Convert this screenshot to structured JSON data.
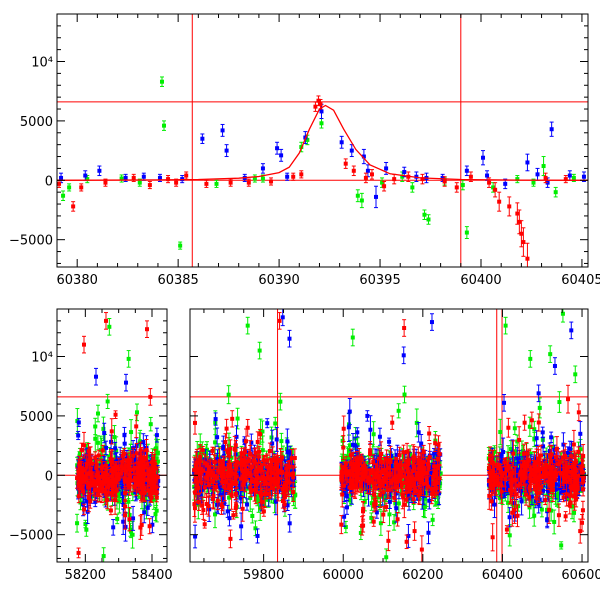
{
  "chart_data": [
    {
      "type": "scatter",
      "title": "",
      "xlabel": "",
      "ylabel": "",
      "xlim": [
        60379,
        60405.3
      ],
      "ylim": [
        -7300,
        14000
      ],
      "x_ticks": [
        60380,
        60385,
        60390,
        60395,
        60400,
        60405
      ],
      "x_tick_labels": [
        "60380",
        "60385",
        "60390",
        "60395",
        "60400",
        "60405"
      ],
      "y_ticks": [
        -5000,
        0,
        5000,
        10000
      ],
      "y_tick_labels": [
        "−5000",
        "0",
        "5000",
        "10⁴"
      ],
      "reference_lines": {
        "horizontal": [
          0,
          6600
        ],
        "vertical": [
          60385.7,
          60399
        ]
      },
      "model_curve": {
        "color": "#ff0000",
        "x": [
          60379,
          60384,
          60386,
          60388,
          60389,
          60390,
          60390.5,
          60391,
          60391.5,
          60392,
          60392.3,
          60392.7,
          60393.2,
          60393.8,
          60394.5,
          60395.5,
          60397,
          60399,
          60402,
          60405.3
        ],
        "y": [
          0,
          30,
          70,
          180,
          320,
          650,
          1100,
          2300,
          4300,
          6000,
          6300,
          5900,
          4300,
          2600,
          1300,
          550,
          200,
          70,
          20,
          0
        ]
      },
      "series": [
        {
          "color": "#00ee00",
          "x": [
            60379.3,
            60379.6,
            60380.5,
            60382.2,
            60383.1,
            60384.2,
            60384.3,
            60385.1,
            60386.9,
            60388.8,
            60389.2,
            60391.1,
            60391.4,
            60392.1,
            60393.9,
            60394.1,
            60395.1,
            60396.1,
            60396.6,
            60397.2,
            60397.4,
            60398.2,
            60399.1,
            60399.3,
            60400.6,
            60401.8,
            60402.6,
            60403.1,
            60403.7,
            60404.6
          ],
          "y": [
            -1300,
            -600,
            100,
            150,
            -200,
            8300,
            4600,
            -5500,
            -300,
            150,
            150,
            2800,
            3400,
            4800,
            -1300,
            -1700,
            -200,
            300,
            -600,
            -2900,
            -3300,
            -100,
            -400,
            -4400,
            -600,
            100,
            -200,
            1200,
            -1000,
            200
          ],
          "err": [
            400,
            300,
            300,
            300,
            300,
            400,
            400,
            300,
            300,
            300,
            300,
            400,
            400,
            400,
            500,
            600,
            400,
            400,
            400,
            400,
            400,
            300,
            400,
            500,
            400,
            300,
            300,
            800,
            400,
            300
          ]
        },
        {
          "color": "#0000ff",
          "x": [
            60379.2,
            60380.4,
            60381.1,
            60382.4,
            60383.3,
            60384.1,
            60385.2,
            60386.2,
            60387.2,
            60387.4,
            60388.3,
            60389.2,
            60389.9,
            60390.1,
            60390.4,
            60391.3,
            60392.1,
            60393.1,
            60393.6,
            60394.2,
            60394.4,
            60394.8,
            60395.3,
            60396.2,
            60396.8,
            60397.3,
            60398.1,
            60399.3,
            60400.1,
            60400.3,
            60401.2,
            60402.3,
            60402.8,
            60403.3,
            60403.5,
            60404.4,
            60405.1
          ],
          "y": [
            200,
            400,
            800,
            200,
            300,
            200,
            100,
            3500,
            4200,
            2500,
            200,
            1000,
            2700,
            2100,
            300,
            3600,
            5800,
            3200,
            2500,
            2000,
            800,
            -1400,
            1000,
            700,
            300,
            200,
            200,
            800,
            1900,
            400,
            -300,
            1500,
            500,
            -200,
            4300,
            400,
            300
          ],
          "err": [
            400,
            400,
            400,
            300,
            300,
            300,
            300,
            400,
            500,
            500,
            300,
            400,
            500,
            500,
            300,
            500,
            600,
            500,
            500,
            600,
            500,
            900,
            500,
            400,
            400,
            400,
            300,
            400,
            600,
            400,
            400,
            700,
            500,
            400,
            600,
            400,
            400
          ]
        },
        {
          "color": "#ff0000",
          "x": [
            60379.1,
            60379.8,
            60380.2,
            60381.4,
            60382.8,
            60383.6,
            60384.5,
            60384.9,
            60385.4,
            60386.4,
            60387.6,
            60388.5,
            60389.6,
            60390.7,
            60391.1,
            60391.8,
            60391.95,
            60392.05,
            60393.3,
            60393.7,
            60394.3,
            60394.6,
            60395.2,
            60395.7,
            60396.4,
            60397.1,
            60398.2,
            60398.8,
            60399.5,
            60400.4,
            60400.7,
            60400.9,
            60401.4,
            60401.8,
            60401.9,
            60402.0,
            60402.1,
            60402.3,
            60403.2,
            60404.2
          ],
          "y": [
            -300,
            -2200,
            -600,
            -200,
            200,
            -400,
            100,
            -200,
            400,
            -300,
            -200,
            -200,
            -100,
            300,
            500,
            6200,
            6700,
            6400,
            1400,
            800,
            200,
            500,
            -500,
            100,
            300,
            100,
            -100,
            -600,
            300,
            -200,
            -800,
            -1800,
            -2200,
            -2800,
            -3500,
            -4500,
            -5200,
            -6600,
            200,
            100
          ],
          "err": [
            300,
            400,
            300,
            300,
            300,
            300,
            300,
            300,
            300,
            300,
            300,
            300,
            300,
            300,
            300,
            400,
            400,
            400,
            400,
            400,
            400,
            400,
            400,
            400,
            400,
            400,
            400,
            400,
            400,
            400,
            600,
            800,
            800,
            900,
            1000,
            1100,
            1200,
            1300,
            400,
            300
          ]
        }
      ]
    },
    {
      "type": "scatter",
      "title": "",
      "xlabel": "",
      "ylabel": "",
      "xlim": [
        58115,
        58445
      ],
      "xlim_segments": [
        [
          58115,
          58445
        ],
        [
          59615,
          60615
        ]
      ],
      "ylim": [
        -7300,
        14000
      ],
      "x_ticks": [
        58200,
        58400,
        59800,
        60000,
        60200,
        60400,
        60600
      ],
      "x_tick_labels": [
        "58200",
        "58400",
        "59800",
        "60000",
        "60200",
        "60400",
        "60600"
      ],
      "y_ticks": [
        -5000,
        0,
        5000,
        10000
      ],
      "y_tick_labels": [
        "−5000",
        "0",
        "5000",
        "10⁴"
      ],
      "reference_lines": {
        "horizontal": [
          0,
          6600
        ],
        "vertical": [
          59835,
          60385.7,
          60399
        ]
      },
      "seasons": [
        {
          "start": 58175,
          "end": 58420
        },
        {
          "start": 59625,
          "end": 59880
        },
        {
          "start": 59995,
          "end": 60245
        },
        {
          "start": 60365,
          "end": 60605
        }
      ],
      "series": [
        {
          "color": "#00ee00",
          "scatter_sigma": 2600,
          "outliers": [
            [
              58272,
              12500
            ],
            [
              58238,
              5200
            ],
            [
              58255,
              -6800
            ],
            [
              58330,
              9800
            ],
            [
              58355,
              5300
            ],
            [
              59760,
              12600
            ],
            [
              59790,
              10500
            ],
            [
              59842,
              6200
            ],
            [
              60024,
              11600
            ],
            [
              60108,
              -6900
            ],
            [
              60154,
              6800
            ],
            [
              60408,
              12600
            ],
            [
              60552,
              13600
            ],
            [
              60583,
              8500
            ],
            [
              60470,
              9800
            ],
            [
              60520,
              10200
            ]
          ]
        },
        {
          "color": "#0000ff",
          "scatter_sigma": 2000,
          "outliers": [
            [
              58232,
              8300
            ],
            [
              58322,
              7800
            ],
            [
              58374,
              2800
            ],
            [
              59848,
              13300
            ],
            [
              59865,
              11500
            ],
            [
              60152,
              10100
            ],
            [
              60223,
              12900
            ],
            [
              60491,
              6900
            ],
            [
              60532,
              9200
            ],
            [
              60573,
              12200
            ],
            [
              60404,
              6100
            ]
          ]
        },
        {
          "color": "#ff0000",
          "scatter_sigma": 2400,
          "outliers": [
            [
              58196,
              11000
            ],
            [
              58262,
              13000
            ],
            [
              58385,
              12300
            ],
            [
              58395,
              6600
            ],
            [
              59704,
              2800
            ],
            [
              59760,
              4000
            ],
            [
              59840,
              13000
            ],
            [
              60153,
              12400
            ],
            [
              60231,
              2700
            ],
            [
              60592,
              5300
            ],
            [
              60600,
              -4000
            ]
          ]
        }
      ]
    }
  ]
}
